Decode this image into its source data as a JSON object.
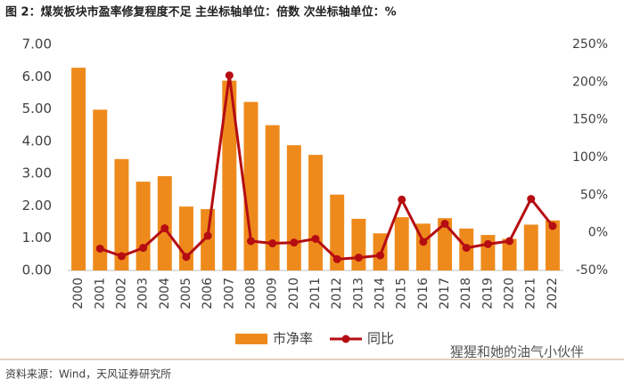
{
  "chart_data": {
    "type": "bar_line",
    "title": "图 2：煤炭板块市盈率修复程度不足  主坐标轴单位：倍数  次坐标轴单位：%",
    "categories": [
      "2000",
      "2001",
      "2002",
      "2003",
      "2004",
      "2005",
      "2006",
      "2007",
      "2008",
      "2009",
      "2010",
      "2011",
      "2012",
      "2013",
      "2014",
      "2015",
      "2016",
      "2017",
      "2018",
      "2019",
      "2020",
      "2021",
      "2022"
    ],
    "series": [
      {
        "name": "市净率",
        "type": "bar",
        "color": "#ee8a1c",
        "values": [
          6.28,
          4.98,
          3.45,
          2.75,
          2.92,
          1.98,
          1.9,
          5.88,
          5.22,
          4.5,
          3.88,
          3.58,
          2.35,
          1.6,
          1.15,
          1.65,
          1.45,
          1.62,
          1.3,
          1.1,
          0.98,
          1.42,
          1.55
        ]
      },
      {
        "name": "同比",
        "type": "line",
        "axis": "y2",
        "color": "#b50d12",
        "values": [
          null,
          -21,
          -31,
          -20,
          6,
          -32,
          -4,
          209,
          -11,
          -14,
          -13,
          -8,
          -35,
          -33,
          -30,
          44,
          -12,
          12,
          -20,
          -15,
          -11,
          45,
          9
        ]
      }
    ],
    "ylim": [
      0,
      7
    ],
    "yticks": [
      {
        "value": 0,
        "label": "0.00"
      },
      {
        "value": 1,
        "label": "1.00"
      },
      {
        "value": 2,
        "label": "2.00"
      },
      {
        "value": 3,
        "label": "3.00"
      },
      {
        "value": 4,
        "label": "4.00"
      },
      {
        "value": 5,
        "label": "5.00"
      },
      {
        "value": 6,
        "label": "6.00"
      },
      {
        "value": 7,
        "label": "7.00"
      }
    ],
    "y2lim": [
      -50,
      250
    ],
    "y2ticks": [
      {
        "value": -50,
        "label": "-50%"
      },
      {
        "value": 0,
        "label": "0%"
      },
      {
        "value": 50,
        "label": "50%"
      },
      {
        "value": 100,
        "label": "100%"
      },
      {
        "value": 150,
        "label": "150%"
      },
      {
        "value": 200,
        "label": "200%"
      },
      {
        "value": 250,
        "label": "250%"
      }
    ],
    "legend": "bottom",
    "source": "资料来源：Wind，天风证券研究所",
    "watermark": "猩猩和她的油气小伙伴"
  }
}
